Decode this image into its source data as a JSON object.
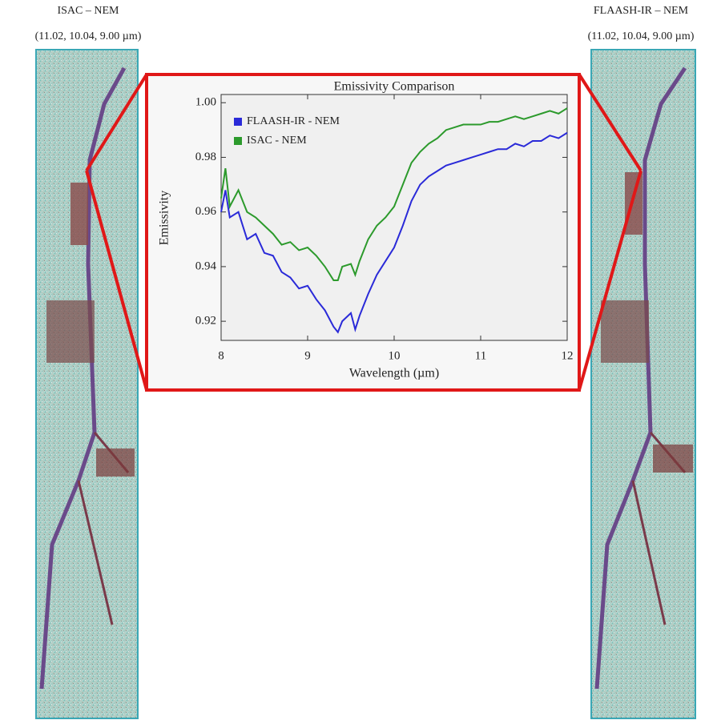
{
  "images": [
    {
      "title": "ISAC – NEM",
      "subtitle": "(11.02, 10.04, 9.00 µm)"
    },
    {
      "title": "FLAASH-IR  – NEM",
      "subtitle": "(11.02, 10.04, 9.00 µm)"
    }
  ],
  "chart_data": {
    "type": "line",
    "title": "Emissivity Comparison",
    "x_label": "Wavelength (µm)",
    "y_label": "Emissivity",
    "x": [
      8.0,
      8.05,
      8.1,
      8.2,
      8.3,
      8.4,
      8.5,
      8.6,
      8.7,
      8.8,
      8.9,
      9.0,
      9.1,
      9.2,
      9.3,
      9.35,
      9.4,
      9.5,
      9.55,
      9.6,
      9.7,
      9.8,
      9.9,
      10.0,
      10.1,
      10.2,
      10.3,
      10.4,
      10.5,
      10.6,
      10.7,
      10.8,
      10.9,
      11.0,
      11.1,
      11.2,
      11.3,
      11.4,
      11.5,
      11.6,
      11.7,
      11.8,
      11.9,
      12.0
    ],
    "series": [
      {
        "name": "FLAASH-IR - NEM",
        "color": "#2a2ad8",
        "values": [
          0.96,
          0.968,
          0.958,
          0.96,
          0.95,
          0.952,
          0.945,
          0.944,
          0.938,
          0.936,
          0.932,
          0.933,
          0.928,
          0.924,
          0.918,
          0.916,
          0.92,
          0.923,
          0.917,
          0.922,
          0.93,
          0.937,
          0.942,
          0.947,
          0.955,
          0.964,
          0.97,
          0.973,
          0.975,
          0.977,
          0.978,
          0.979,
          0.98,
          0.981,
          0.982,
          0.983,
          0.983,
          0.985,
          0.984,
          0.986,
          0.986,
          0.988,
          0.987,
          0.989
        ]
      },
      {
        "name": "ISAC - NEM",
        "color": "#2c9a2c",
        "values": [
          0.965,
          0.976,
          0.962,
          0.968,
          0.96,
          0.958,
          0.955,
          0.952,
          0.948,
          0.949,
          0.946,
          0.947,
          0.944,
          0.94,
          0.935,
          0.935,
          0.94,
          0.941,
          0.937,
          0.942,
          0.95,
          0.955,
          0.958,
          0.962,
          0.97,
          0.978,
          0.982,
          0.985,
          0.987,
          0.99,
          0.991,
          0.992,
          0.992,
          0.992,
          0.993,
          0.993,
          0.994,
          0.995,
          0.994,
          0.995,
          0.996,
          0.997,
          0.996,
          0.998
        ]
      }
    ],
    "xlim": [
      8,
      12
    ],
    "xticks": [
      8,
      9,
      10,
      11,
      12
    ],
    "ylim": [
      0.913,
      1.003
    ],
    "yticks": [
      0.92,
      0.94,
      0.96,
      0.98,
      {
        "value": 1.0,
        "label": "1.00"
      }
    ],
    "legend": "upper-left"
  }
}
